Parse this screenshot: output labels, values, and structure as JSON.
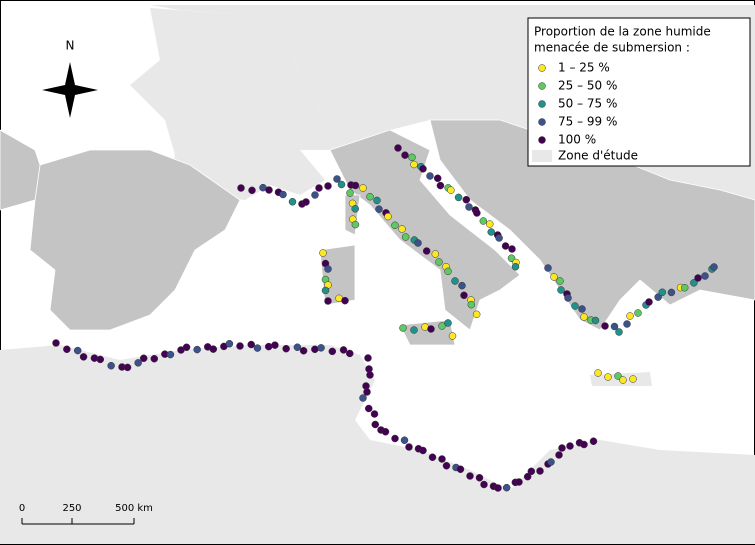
{
  "north_label": "N",
  "legend": {
    "title_lines": [
      "Proportion de la zone humide",
      "menacée de submersion :"
    ],
    "items": [
      {
        "label": "1 – 25 %",
        "color": "#fde725"
      },
      {
        "label": "25 – 50 %",
        "color": "#5ec962"
      },
      {
        "label": "50 – 75 %",
        "color": "#21918c"
      },
      {
        "label": "75 – 99 %",
        "color": "#3b528b"
      },
      {
        "label": "100 %",
        "color": "#440154"
      }
    ],
    "zone": {
      "label": "Zone d'étude",
      "color": "#e8e8e8"
    }
  },
  "scale_bar": {
    "labels": [
      "0",
      "250",
      "500 km"
    ]
  }
}
